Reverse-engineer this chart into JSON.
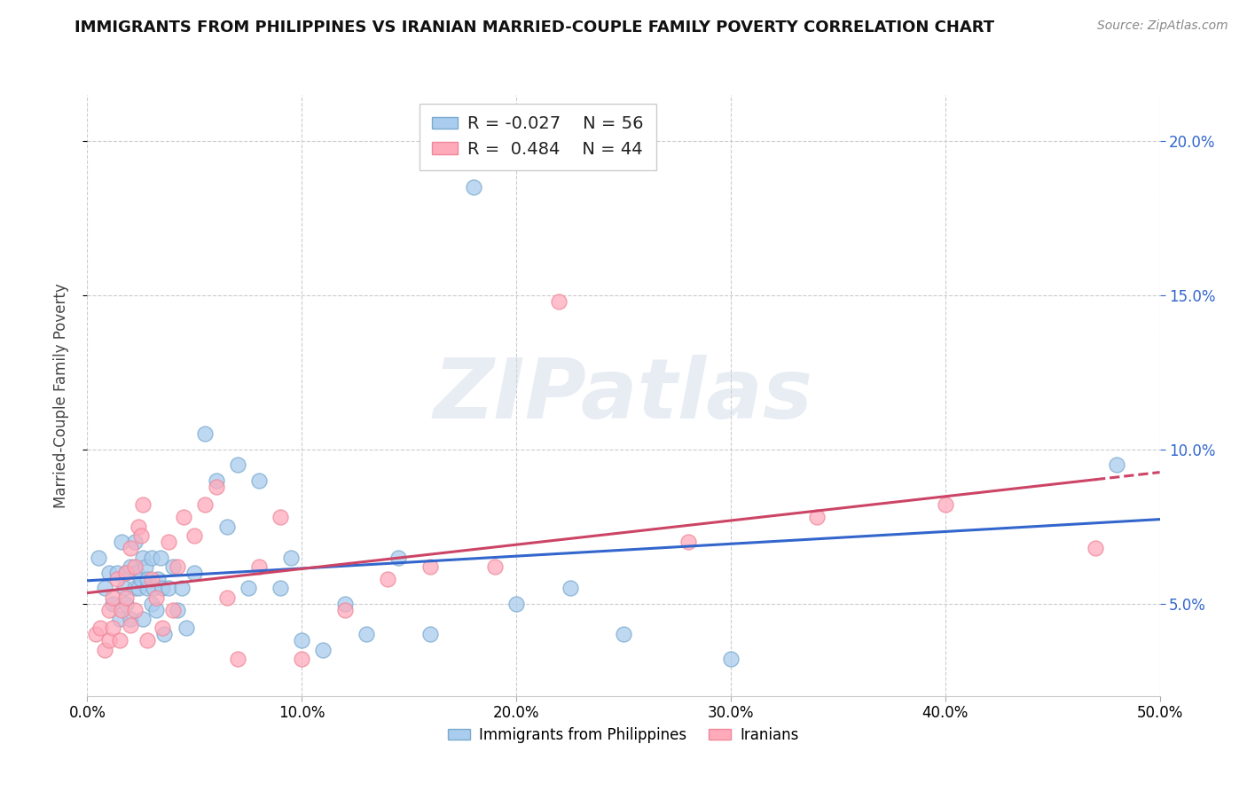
{
  "title": "IMMIGRANTS FROM PHILIPPINES VS IRANIAN MARRIED-COUPLE FAMILY POVERTY CORRELATION CHART",
  "source": "Source: ZipAtlas.com",
  "ylabel": "Married-Couple Family Poverty",
  "xlim": [
    0.0,
    0.5
  ],
  "ylim": [
    0.02,
    0.215
  ],
  "xticks": [
    0.0,
    0.1,
    0.2,
    0.3,
    0.4,
    0.5
  ],
  "xticklabels": [
    "0.0%",
    "10.0%",
    "20.0%",
    "30.0%",
    "40.0%",
    "50.0%"
  ],
  "yticks": [
    0.05,
    0.1,
    0.15,
    0.2
  ],
  "yticklabels": [
    "5.0%",
    "10.0%",
    "15.0%",
    "20.0%"
  ],
  "grid_color": "#cccccc",
  "background_color": "#ffffff",
  "watermark": "ZIPatlas",
  "legend_r1": "-0.027",
  "legend_n1": "56",
  "legend_r2": "0.484",
  "legend_n2": "44",
  "legend_label1": "Immigrants from Philippines",
  "legend_label2": "Iranians",
  "blue_scatter_color": "#aaccee",
  "pink_scatter_color": "#ffaabb",
  "blue_edge_color": "#7aaace",
  "pink_edge_color": "#ee8899",
  "blue_line_color": "#3366cc",
  "pink_line_color": "#cc4466",
  "philippines_x": [
    0.005,
    0.008,
    0.01,
    0.012,
    0.014,
    0.015,
    0.016,
    0.017,
    0.018,
    0.018,
    0.02,
    0.02,
    0.022,
    0.022,
    0.023,
    0.024,
    0.025,
    0.026,
    0.026,
    0.027,
    0.028,
    0.028,
    0.03,
    0.03,
    0.031,
    0.032,
    0.033,
    0.034,
    0.035,
    0.036,
    0.038,
    0.04,
    0.042,
    0.044,
    0.046,
    0.05,
    0.055,
    0.06,
    0.065,
    0.07,
    0.075,
    0.08,
    0.09,
    0.095,
    0.1,
    0.11,
    0.12,
    0.13,
    0.145,
    0.16,
    0.18,
    0.2,
    0.225,
    0.25,
    0.3,
    0.48
  ],
  "philippines_y": [
    0.065,
    0.055,
    0.06,
    0.05,
    0.06,
    0.045,
    0.07,
    0.055,
    0.06,
    0.05,
    0.062,
    0.045,
    0.055,
    0.07,
    0.06,
    0.055,
    0.058,
    0.065,
    0.045,
    0.062,
    0.055,
    0.058,
    0.05,
    0.065,
    0.055,
    0.048,
    0.058,
    0.065,
    0.055,
    0.04,
    0.055,
    0.062,
    0.048,
    0.055,
    0.042,
    0.06,
    0.105,
    0.09,
    0.075,
    0.095,
    0.055,
    0.09,
    0.055,
    0.065,
    0.038,
    0.035,
    0.05,
    0.04,
    0.065,
    0.04,
    0.185,
    0.05,
    0.055,
    0.04,
    0.032,
    0.095
  ],
  "iranians_x": [
    0.004,
    0.006,
    0.008,
    0.01,
    0.01,
    0.012,
    0.012,
    0.014,
    0.015,
    0.016,
    0.018,
    0.018,
    0.02,
    0.02,
    0.022,
    0.022,
    0.024,
    0.025,
    0.026,
    0.028,
    0.03,
    0.032,
    0.035,
    0.038,
    0.04,
    0.042,
    0.045,
    0.05,
    0.055,
    0.06,
    0.065,
    0.07,
    0.08,
    0.09,
    0.1,
    0.12,
    0.14,
    0.16,
    0.19,
    0.22,
    0.28,
    0.34,
    0.4,
    0.47
  ],
  "iranians_y": [
    0.04,
    0.042,
    0.035,
    0.048,
    0.038,
    0.052,
    0.042,
    0.058,
    0.038,
    0.048,
    0.06,
    0.052,
    0.043,
    0.068,
    0.048,
    0.062,
    0.075,
    0.072,
    0.082,
    0.038,
    0.058,
    0.052,
    0.042,
    0.07,
    0.048,
    0.062,
    0.078,
    0.072,
    0.082,
    0.088,
    0.052,
    0.032,
    0.062,
    0.078,
    0.032,
    0.048,
    0.058,
    0.062,
    0.062,
    0.148,
    0.07,
    0.078,
    0.082,
    0.068
  ]
}
